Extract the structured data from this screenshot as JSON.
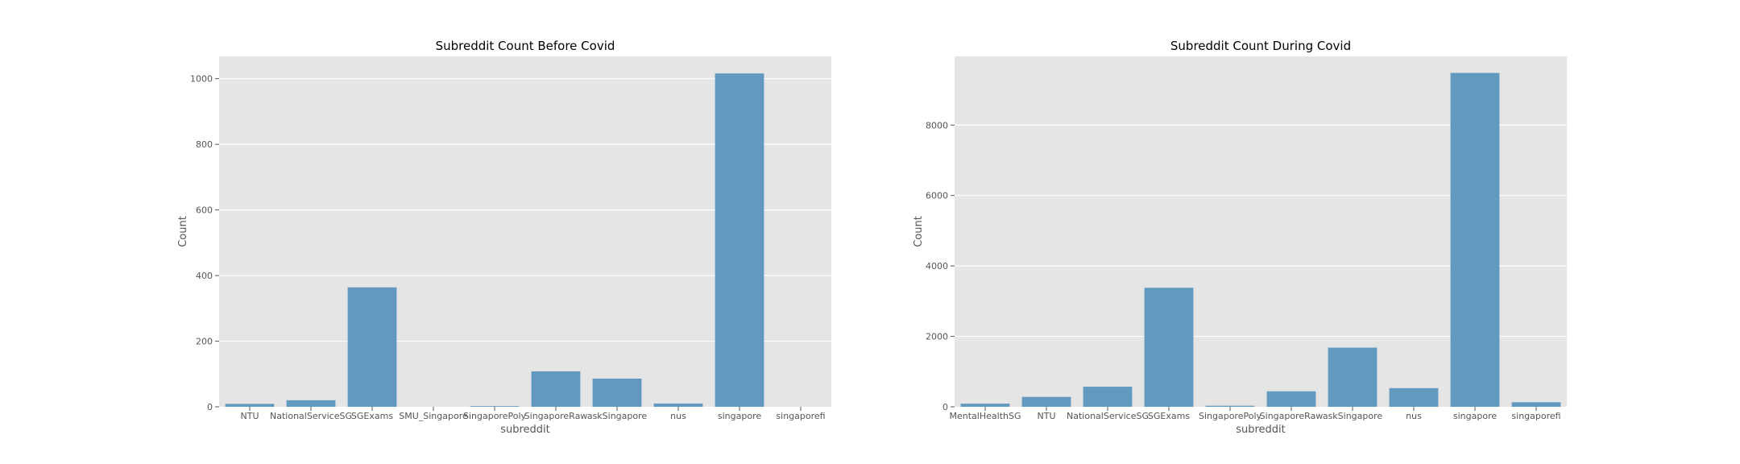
{
  "chart_data": [
    {
      "type": "bar",
      "title": "Subreddit Count Before Covid",
      "xlabel": "subreddit",
      "ylabel": "Count",
      "categories": [
        "NTU",
        "NationalServiceSG",
        "SGExams",
        "SMU_Singapore",
        "SingaporePoly",
        "SingaporeRaw",
        "askSingapore",
        "nus",
        "singapore",
        "singaporefi"
      ],
      "values": [
        9,
        20,
        364,
        0,
        2,
        108,
        86,
        10,
        1016,
        0
      ],
      "ylim": [
        0,
        1068
      ],
      "yticks": [
        0,
        200,
        400,
        600,
        800,
        1000
      ],
      "grid": true,
      "bar_color": "#6199bf",
      "background_color": "#e5e5e5"
    },
    {
      "type": "bar",
      "title": "Subreddit Count During Covid",
      "xlabel": "subreddit",
      "ylabel": "Count",
      "categories": [
        "MentalHealthSG",
        "NTU",
        "NationalServiceSG",
        "SGExams",
        "SingaporePoly",
        "SingaporeRaw",
        "askSingapore",
        "nus",
        "singapore",
        "singaporefi"
      ],
      "values": [
        90,
        280,
        570,
        3380,
        30,
        440,
        1680,
        530,
        9480,
        130
      ],
      "ylim": [
        0,
        9950
      ],
      "yticks": [
        0,
        2000,
        4000,
        6000,
        8000
      ],
      "grid": true,
      "bar_color": "#6199bf",
      "background_color": "#e5e5e5"
    }
  ]
}
